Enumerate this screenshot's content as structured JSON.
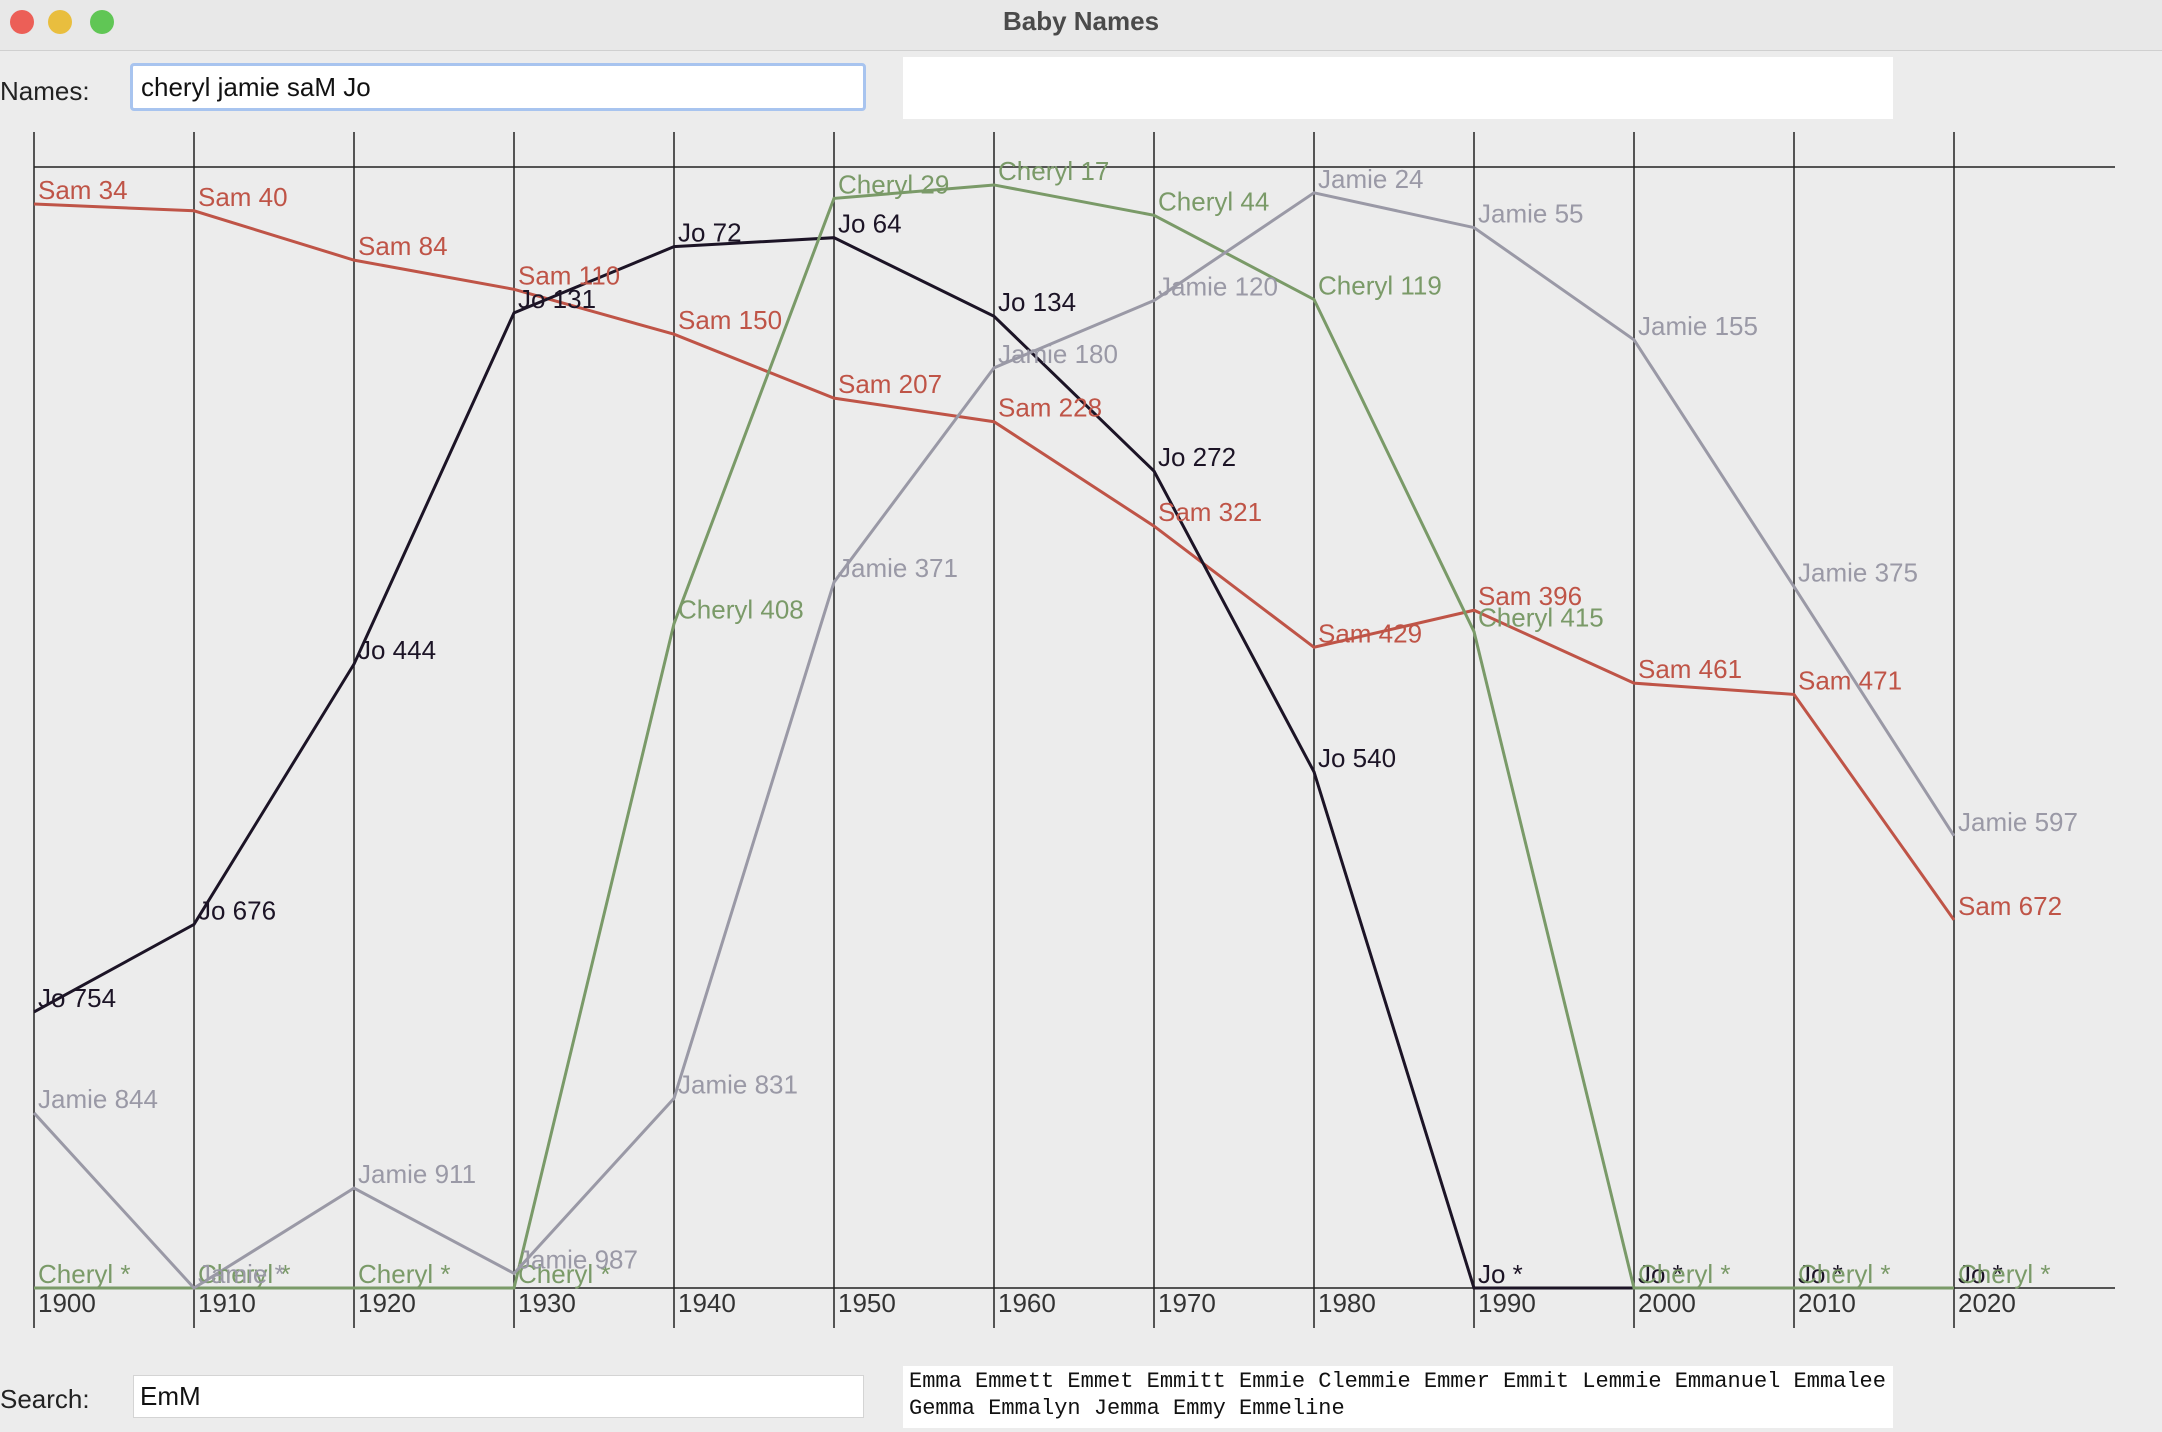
{
  "window": {
    "title": "Baby Names"
  },
  "names": {
    "label": "Names:",
    "value": "cheryl jamie saM Jo"
  },
  "search": {
    "label": "Search:",
    "value": "EmM",
    "results": [
      "Emma",
      "Emmett",
      "Emmet",
      "Emmitt",
      "Emmie",
      "Clemmie",
      "Emmer",
      "Emmit",
      "Lemmie",
      "Emmanuel",
      "Emmalee",
      "Gemma",
      "Emmalyn",
      "Jemma",
      "Emmy",
      "Emmeline"
    ]
  },
  "colors": {
    "Sam": "#bf5447",
    "Jo": "#1c1426",
    "Cheryl": "#7a9a68",
    "Jamie": "#9a99a6",
    "grid": "#222222"
  },
  "chart_data": {
    "type": "line",
    "x": [
      1900,
      1910,
      1920,
      1930,
      1940,
      1950,
      1960,
      1970,
      1980,
      1990,
      2000,
      2010,
      2020
    ],
    "tick_labels": [
      "1900",
      "1910",
      "1920",
      "1930",
      "1940",
      "1950",
      "1960",
      "1970",
      "1980",
      "1990",
      "2000",
      "2010",
      "2020"
    ],
    "ylim": [
      1,
      1000
    ],
    "unranked_label": "*",
    "series": [
      {
        "name": "Sam",
        "values": [
          34,
          40,
          84,
          110,
          150,
          207,
          228,
          321,
          429,
          396,
          461,
          471,
          672
        ]
      },
      {
        "name": "Jo",
        "values": [
          754,
          676,
          444,
          131,
          72,
          64,
          134,
          272,
          540,
          null,
          null,
          null,
          null
        ]
      },
      {
        "name": "Cheryl",
        "values": [
          null,
          null,
          null,
          null,
          408,
          29,
          17,
          44,
          119,
          415,
          null,
          null,
          null
        ]
      },
      {
        "name": "Jamie",
        "values": [
          844,
          null,
          911,
          987,
          831,
          371,
          180,
          120,
          24,
          55,
          155,
          375,
          597
        ]
      }
    ]
  }
}
